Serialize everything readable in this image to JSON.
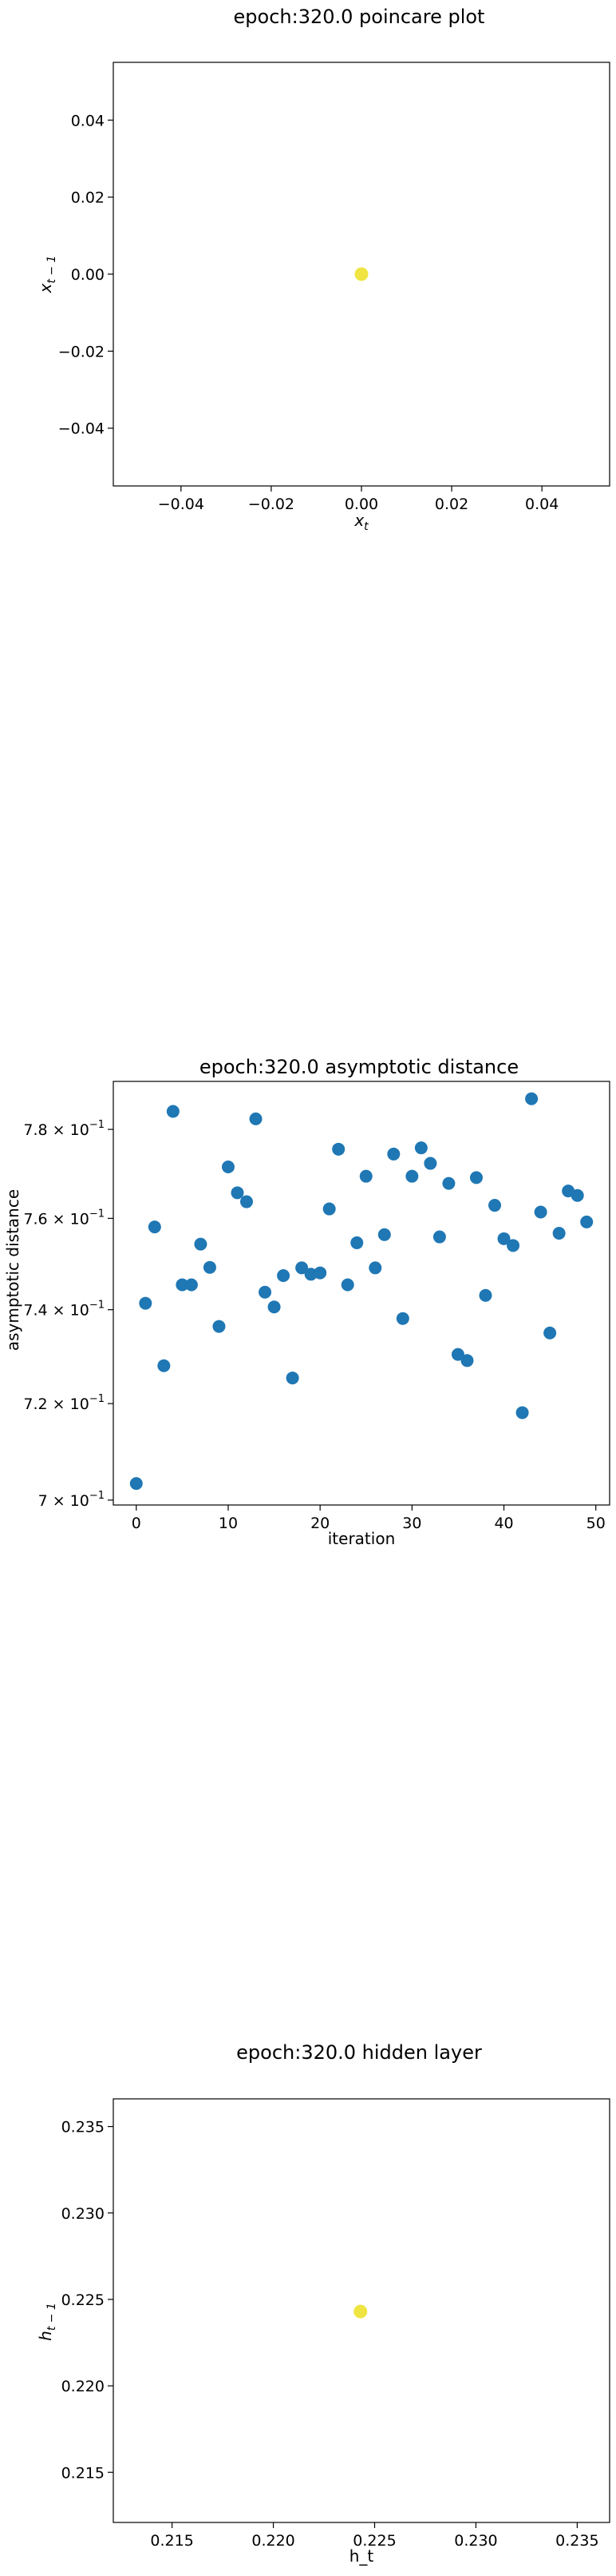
{
  "chart_data": [
    {
      "type": "scatter",
      "title": "epoch:320.0 poincare plot",
      "xlabel_base": "x",
      "xlabel_sub": "t",
      "ylabel_base": "x",
      "ylabel_sub": "t − 1",
      "xlim": [
        -0.055,
        0.055
      ],
      "ylim": [
        -0.055,
        0.055
      ],
      "xticks": [
        -0.04,
        -0.02,
        0.0,
        0.02,
        0.04
      ],
      "xtick_labels": [
        "−0.04",
        "−0.02",
        "0.00",
        "0.02",
        "0.04"
      ],
      "yticks": [
        0.04,
        0.02,
        0.0,
        -0.02,
        -0.04
      ],
      "ytick_labels": [
        "0.04",
        "0.02",
        "0.00",
        "−0.02",
        "−0.04"
      ],
      "points": [
        {
          "x": 0.0,
          "y": 0.0
        }
      ],
      "marker_color": "#f0e442",
      "grid": false
    },
    {
      "type": "scatter",
      "title": "epoch:320.0 asymptotic distance",
      "xlabel": "iteration",
      "ylabel": "asymptotic distance",
      "yscale": "log",
      "xlim": [
        -2.5,
        51.5
      ],
      "ylim": [
        0.699,
        0.791
      ],
      "xticks": [
        0,
        10,
        20,
        30,
        40,
        50
      ],
      "xtick_labels": [
        "0",
        "10",
        "20",
        "30",
        "40",
        "50"
      ],
      "yticks": [
        {
          "value": 0.78,
          "mantissa": "7.8",
          "exponent": "−1"
        },
        {
          "value": 0.76,
          "mantissa": "7.6",
          "exponent": "−1"
        },
        {
          "value": 0.74,
          "mantissa": "7.4",
          "exponent": "−1"
        },
        {
          "value": 0.72,
          "mantissa": "7.2",
          "exponent": "−1"
        },
        {
          "value": 0.7,
          "mantissa": "7",
          "exponent": "−1"
        }
      ],
      "x": [
        0,
        1,
        2,
        3,
        4,
        5,
        6,
        7,
        8,
        9,
        10,
        11,
        12,
        13,
        14,
        15,
        16,
        17,
        18,
        19,
        20,
        21,
        22,
        23,
        24,
        25,
        26,
        27,
        28,
        29,
        30,
        31,
        32,
        33,
        34,
        35,
        36,
        37,
        38,
        39,
        40,
        41,
        42,
        43,
        44,
        45,
        46,
        47,
        48,
        49
      ],
      "y": [
        0.7034,
        0.7414,
        0.7581,
        0.728,
        0.7841,
        0.7454,
        0.7454,
        0.7543,
        0.7492,
        0.7364,
        0.7715,
        0.7657,
        0.7637,
        0.7824,
        0.7438,
        0.7406,
        0.7474,
        0.7254,
        0.7491,
        0.7477,
        0.748,
        0.7621,
        0.7755,
        0.7454,
        0.7546,
        0.7694,
        0.7491,
        0.7564,
        0.7744,
        0.7381,
        0.7694,
        0.7758,
        0.7723,
        0.7559,
        0.7678,
        0.7304,
        0.7291,
        0.7691,
        0.7431,
        0.7629,
        0.7555,
        0.754,
        0.7181,
        0.787,
        0.7614,
        0.735,
        0.7567,
        0.7661,
        0.7651,
        0.7592
      ],
      "marker_color": "#1f77b4",
      "grid": false
    },
    {
      "type": "scatter",
      "title": "epoch:320.0 hidden layer",
      "xlabel": "h_t",
      "ylabel_base": "h",
      "ylabel_sub": "t − 1",
      "xlim": [
        0.2121,
        0.2366
      ],
      "ylim": [
        0.2121,
        0.2366
      ],
      "xticks": [
        0.215,
        0.22,
        0.225,
        0.23,
        0.235
      ],
      "xtick_labels": [
        "0.215",
        "0.220",
        "0.225",
        "0.230",
        "0.235"
      ],
      "yticks": [
        0.235,
        0.23,
        0.225,
        0.22,
        0.215
      ],
      "ytick_labels": [
        "0.235",
        "0.230",
        "0.225",
        "0.220",
        "0.215"
      ],
      "points": [
        {
          "x": 0.2243,
          "y": 0.2243
        }
      ],
      "marker_color": "#f0e442",
      "grid": false
    }
  ]
}
